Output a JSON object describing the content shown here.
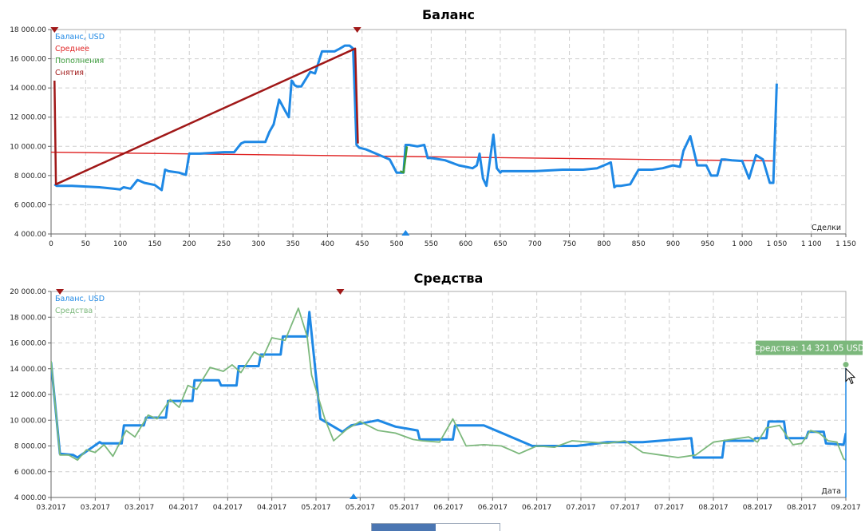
{
  "colors": {
    "balance": "#1e88e5",
    "average": "#e02424",
    "deposits": "#3a9a3a",
    "withdrawals": "#a01818",
    "equity": "#7cb87c",
    "grid": "#cfcfcf",
    "tooltip": "#7cb87c"
  },
  "chart_data": [
    {
      "type": "line",
      "title": "Баланс",
      "xlabel": "Сделки",
      "ylabel": "",
      "xlim": [
        0,
        1150
      ],
      "ylim": [
        4000,
        18000
      ],
      "x_ticks": [
        0,
        50,
        100,
        150,
        200,
        250,
        300,
        350,
        400,
        450,
        500,
        550,
        600,
        650,
        700,
        750,
        800,
        850,
        900,
        950,
        1000,
        1050,
        1100,
        1150
      ],
      "x_tick_labels": [
        "0",
        "50",
        "100",
        "150",
        "200",
        "250",
        "300",
        "350",
        "400",
        "450",
        "500",
        "550",
        "600",
        "650",
        "700",
        "750",
        "800",
        "850",
        "900",
        "950",
        "1 000",
        "1 050",
        "1 100",
        "1 150"
      ],
      "y_ticks": [
        4000,
        6000,
        8000,
        10000,
        12000,
        14000,
        16000,
        18000
      ],
      "y_tick_labels": [
        "4 000.00",
        "6 000.00",
        "8 000.00",
        "10 000.00",
        "12 000.00",
        "14 000.00",
        "16 000.00",
        "18 000.00"
      ],
      "grid": true,
      "legend_position": "top-left",
      "legend": [
        "Баланс, USD",
        "Среднее",
        "Пополнения",
        "Снятия"
      ],
      "series": [
        {
          "name": "Баланс, USD",
          "x": [
            5,
            8,
            30,
            70,
            80,
            90,
            100,
            105,
            115,
            125,
            135,
            150,
            160,
            165,
            170,
            185,
            195,
            200,
            205,
            215,
            250,
            265,
            275,
            280,
            290,
            310,
            316,
            322,
            330,
            338,
            344,
            348,
            350,
            352,
            356,
            362,
            375,
            382,
            392,
            398,
            400,
            410,
            418,
            425,
            432,
            437,
            442,
            446,
            455,
            470,
            490,
            500,
            510,
            513,
            518,
            530,
            540,
            545,
            550,
            570,
            590,
            600,
            610,
            616,
            620,
            625,
            630,
            640,
            645,
            650,
            652,
            656,
            660,
            666,
            680,
            700,
            740,
            750,
            770,
            790,
            810,
            815,
            818,
            825,
            838,
            850,
            870,
            885,
            900,
            910,
            915,
            925,
            931,
            935,
            948,
            955,
            964,
            970,
            975,
            985,
            1000,
            1010,
            1020,
            1030,
            1040,
            1045,
            1050
          ],
          "y": [
            7400,
            7300,
            7300,
            7200,
            7150,
            7100,
            7050,
            7200,
            7100,
            7700,
            7500,
            7350,
            7000,
            8400,
            8300,
            8200,
            8050,
            9500,
            9500,
            9500,
            9600,
            9600,
            10200,
            10300,
            10300,
            10300,
            11000,
            11500,
            13200,
            12500,
            12000,
            14500,
            14400,
            14200,
            14100,
            14100,
            15100,
            15000,
            16500,
            16500,
            16500,
            16500,
            16700,
            16900,
            16900,
            16700,
            10100,
            9900,
            9800,
            9500,
            9100,
            8200,
            8200,
            10100,
            10100,
            10000,
            10100,
            9200,
            9200,
            9050,
            8700,
            8600,
            8500,
            8700,
            9500,
            7800,
            7300,
            10800,
            8500,
            8200,
            8300,
            8300,
            8300,
            8300,
            8300,
            8300,
            8400,
            8400,
            8400,
            8500,
            8900,
            7200,
            7300,
            7300,
            7400,
            8400,
            8400,
            8500,
            8700,
            8600,
            9700,
            10700,
            9500,
            8700,
            8700,
            8000,
            8000,
            9100,
            9100,
            9050,
            9000,
            7800,
            9400,
            9100,
            7500,
            7500,
            14300
          ]
        },
        {
          "name": "Среднее",
          "x": [
            0,
            1045
          ],
          "y": [
            9600,
            9000
          ]
        },
        {
          "name": "Пополнения",
          "x": [
            505,
            510,
            515
          ],
          "y": [
            8300,
            8200,
            10000
          ]
        },
        {
          "name": "Снятия",
          "x": [
            5,
            7,
            440,
            444
          ],
          "y": [
            14500,
            7400,
            16700,
            10200
          ]
        }
      ],
      "markers_top": [
        5,
        443
      ],
      "marker_bottom": [
        513
      ]
    },
    {
      "type": "line",
      "title": "Средства",
      "xlabel": "Дата",
      "ylabel": "",
      "xlim": [
        0,
        18
      ],
      "ylim": [
        4000,
        20000
      ],
      "x_ticks": [
        0,
        1,
        2,
        3,
        4,
        5,
        6,
        7,
        8,
        9,
        10,
        11,
        12,
        13,
        14,
        15,
        16,
        17,
        18
      ],
      "x_tick_labels": [
        "03.2017",
        "03.2017",
        "03.2017",
        "04.2017",
        "04.2017",
        "04.2017",
        "05.2017",
        "05.2017",
        "05.2017",
        "06.2017",
        "06.2017",
        "06.2017",
        "07.2017",
        "07.2017",
        "07.2017",
        "08.2017",
        "08.2017",
        "08.2017",
        "09.2017"
      ],
      "y_ticks": [
        4000,
        6000,
        8000,
        10000,
        12000,
        14000,
        16000,
        18000,
        20000
      ],
      "y_tick_labels": [
        "4 000.00",
        "6 000.00",
        "8 000.00",
        "10 000.00",
        "12 000.00",
        "14 000.00",
        "16 000.00",
        "18 000.00",
        "20 000.00"
      ],
      "grid": true,
      "legend_position": "top-left",
      "legend": [
        "Баланс, USD",
        "Средства"
      ],
      "tooltip": "Средства: 14 321.05 USD",
      "series": [
        {
          "name": "Баланс, USD",
          "x": [
            0,
            0.2,
            0.5,
            0.6,
            1.1,
            1.15,
            1.6,
            1.65,
            2.1,
            2.15,
            2.6,
            2.65,
            3.2,
            3.25,
            3.8,
            3.85,
            4.2,
            4.25,
            4.7,
            4.75,
            5.2,
            5.25,
            5.8,
            5.85,
            6.1,
            6.6,
            6.8,
            7.4,
            7.8,
            8.3,
            8.35,
            9.1,
            9.15,
            9.8,
            10.9,
            11.9,
            12.6,
            13.4,
            14.5,
            14.55,
            15.2,
            15.25,
            15.9,
            15.95,
            16.2,
            16.25,
            16.6,
            16.65,
            17.1,
            17.15,
            17.5,
            17.55,
            17.95,
            18.0
          ],
          "y": [
            14500,
            7400,
            7300,
            7100,
            8300,
            8200,
            8200,
            9600,
            9600,
            10200,
            10200,
            11500,
            11500,
            13100,
            13100,
            12700,
            12700,
            14200,
            14200,
            15100,
            15100,
            16500,
            16500,
            18400,
            10100,
            9100,
            9600,
            10000,
            9500,
            9200,
            8500,
            8500,
            9600,
            9600,
            8000,
            8000,
            8300,
            8300,
            8600,
            7100,
            7100,
            8400,
            8400,
            8600,
            8600,
            9900,
            9900,
            8600,
            8600,
            9100,
            9100,
            8200,
            8100,
            9000
          ]
        },
        {
          "name": "Средства",
          "x": [
            0,
            0.2,
            0.4,
            0.6,
            0.8,
            1.0,
            1.2,
            1.4,
            1.7,
            1.9,
            2.2,
            2.4,
            2.7,
            2.9,
            3.1,
            3.3,
            3.6,
            3.9,
            4.1,
            4.3,
            4.6,
            4.8,
            5.0,
            5.3,
            5.6,
            5.8,
            5.9,
            6.2,
            6.4,
            6.7,
            7.0,
            7.4,
            7.8,
            8.2,
            8.4,
            8.8,
            9.1,
            9.4,
            9.8,
            10.2,
            10.6,
            11.0,
            11.4,
            11.8,
            12.2,
            12.6,
            13.0,
            13.4,
            13.8,
            14.2,
            14.6,
            15.0,
            15.4,
            15.8,
            16.0,
            16.2,
            16.5,
            16.8,
            17.0,
            17.2,
            17.4,
            17.6,
            17.8,
            17.95,
            18.0
          ],
          "y": [
            14600,
            7300,
            7300,
            6900,
            7700,
            7500,
            8100,
            7200,
            9200,
            8700,
            10400,
            10100,
            11600,
            11000,
            12700,
            12400,
            14100,
            13800,
            14300,
            13700,
            15300,
            14900,
            16400,
            16200,
            18700,
            16500,
            13500,
            10100,
            8400,
            9300,
            9900,
            9200,
            9000,
            8500,
            8400,
            8300,
            10100,
            8000,
            8100,
            8000,
            7400,
            8000,
            7900,
            8400,
            8300,
            8200,
            8400,
            7500,
            7300,
            7100,
            7300,
            8300,
            8500,
            8700,
            8300,
            9400,
            9600,
            8100,
            8200,
            9200,
            9000,
            8400,
            8300,
            7000,
            6900
          ]
        }
      ],
      "markers_top": [
        0.2,
        6.55
      ],
      "marker_bottom": [
        6.85
      ]
    }
  ]
}
